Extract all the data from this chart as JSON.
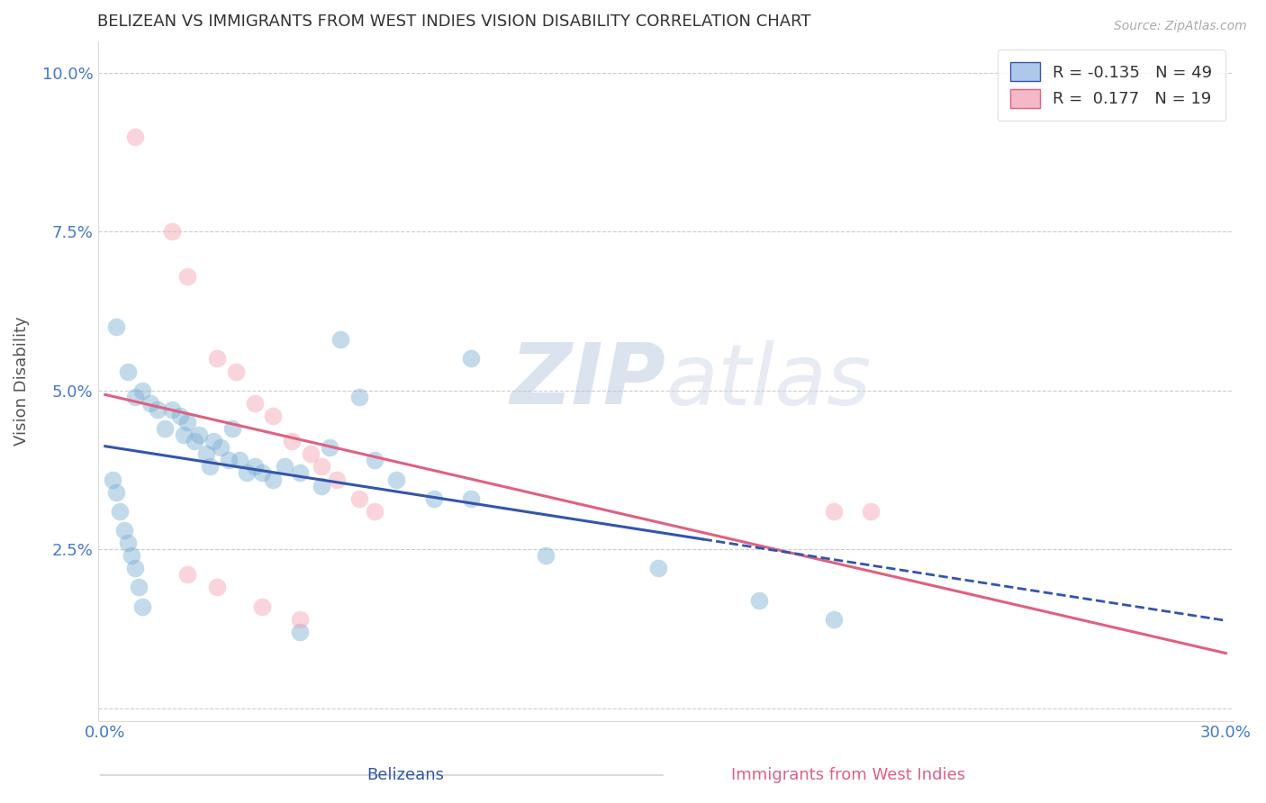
{
  "title": "BELIZEAN VS IMMIGRANTS FROM WEST INDIES VISION DISABILITY CORRELATION CHART",
  "source": "Source: ZipAtlas.com",
  "xlabel_belizean": "Belizeans",
  "xlabel_westindies": "Immigrants from West Indies",
  "ylabel": "Vision Disability",
  "xlim": [
    -0.002,
    0.302
  ],
  "ylim": [
    -0.002,
    0.105
  ],
  "xticks": [
    0.0,
    0.05,
    0.1,
    0.15,
    0.2,
    0.25,
    0.3
  ],
  "yticks": [
    0.0,
    0.025,
    0.05,
    0.075,
    0.1
  ],
  "belizean_color": "#7bafd4",
  "westindies_color": "#f4a0b0",
  "belizean_R": -0.135,
  "belizean_N": 49,
  "westindies_R": 0.177,
  "westindies_N": 19,
  "belizean_line_color": "#3355aa",
  "westindies_line_color": "#e06080",
  "watermark_color": "#d0d8e8",
  "background_color": "#ffffff",
  "grid_color": "#cccccc",
  "title_color": "#333333",
  "label_color": "#4477cc",
  "belizean_points": [
    [
      0.003,
      0.06
    ],
    [
      0.006,
      0.053
    ],
    [
      0.008,
      0.049
    ],
    [
      0.01,
      0.05
    ],
    [
      0.012,
      0.048
    ],
    [
      0.014,
      0.047
    ],
    [
      0.016,
      0.044
    ],
    [
      0.018,
      0.047
    ],
    [
      0.02,
      0.046
    ],
    [
      0.021,
      0.043
    ],
    [
      0.022,
      0.045
    ],
    [
      0.024,
      0.042
    ],
    [
      0.025,
      0.043
    ],
    [
      0.027,
      0.04
    ],
    [
      0.028,
      0.038
    ],
    [
      0.029,
      0.042
    ],
    [
      0.031,
      0.041
    ],
    [
      0.033,
      0.039
    ],
    [
      0.034,
      0.044
    ],
    [
      0.036,
      0.039
    ],
    [
      0.038,
      0.037
    ],
    [
      0.04,
      0.038
    ],
    [
      0.042,
      0.037
    ],
    [
      0.045,
      0.036
    ],
    [
      0.048,
      0.038
    ],
    [
      0.052,
      0.037
    ],
    [
      0.058,
      0.035
    ],
    [
      0.06,
      0.041
    ],
    [
      0.063,
      0.058
    ],
    [
      0.068,
      0.049
    ],
    [
      0.072,
      0.039
    ],
    [
      0.078,
      0.036
    ],
    [
      0.088,
      0.033
    ],
    [
      0.098,
      0.033
    ],
    [
      0.002,
      0.036
    ],
    [
      0.003,
      0.034
    ],
    [
      0.004,
      0.031
    ],
    [
      0.005,
      0.028
    ],
    [
      0.006,
      0.026
    ],
    [
      0.007,
      0.024
    ],
    [
      0.008,
      0.022
    ],
    [
      0.009,
      0.019
    ],
    [
      0.01,
      0.016
    ],
    [
      0.118,
      0.024
    ],
    [
      0.148,
      0.022
    ],
    [
      0.175,
      0.017
    ],
    [
      0.195,
      0.014
    ],
    [
      0.098,
      0.055
    ],
    [
      0.052,
      0.012
    ]
  ],
  "westindies_points": [
    [
      0.008,
      0.09
    ],
    [
      0.018,
      0.075
    ],
    [
      0.022,
      0.068
    ],
    [
      0.03,
      0.055
    ],
    [
      0.035,
      0.053
    ],
    [
      0.04,
      0.048
    ],
    [
      0.045,
      0.046
    ],
    [
      0.05,
      0.042
    ],
    [
      0.055,
      0.04
    ],
    [
      0.058,
      0.038
    ],
    [
      0.062,
      0.036
    ],
    [
      0.068,
      0.033
    ],
    [
      0.072,
      0.031
    ],
    [
      0.195,
      0.031
    ],
    [
      0.205,
      0.031
    ],
    [
      0.022,
      0.021
    ],
    [
      0.03,
      0.019
    ],
    [
      0.042,
      0.016
    ],
    [
      0.052,
      0.014
    ]
  ],
  "solid_line_xmax": 0.16,
  "dashed_line_xmax": 0.3
}
